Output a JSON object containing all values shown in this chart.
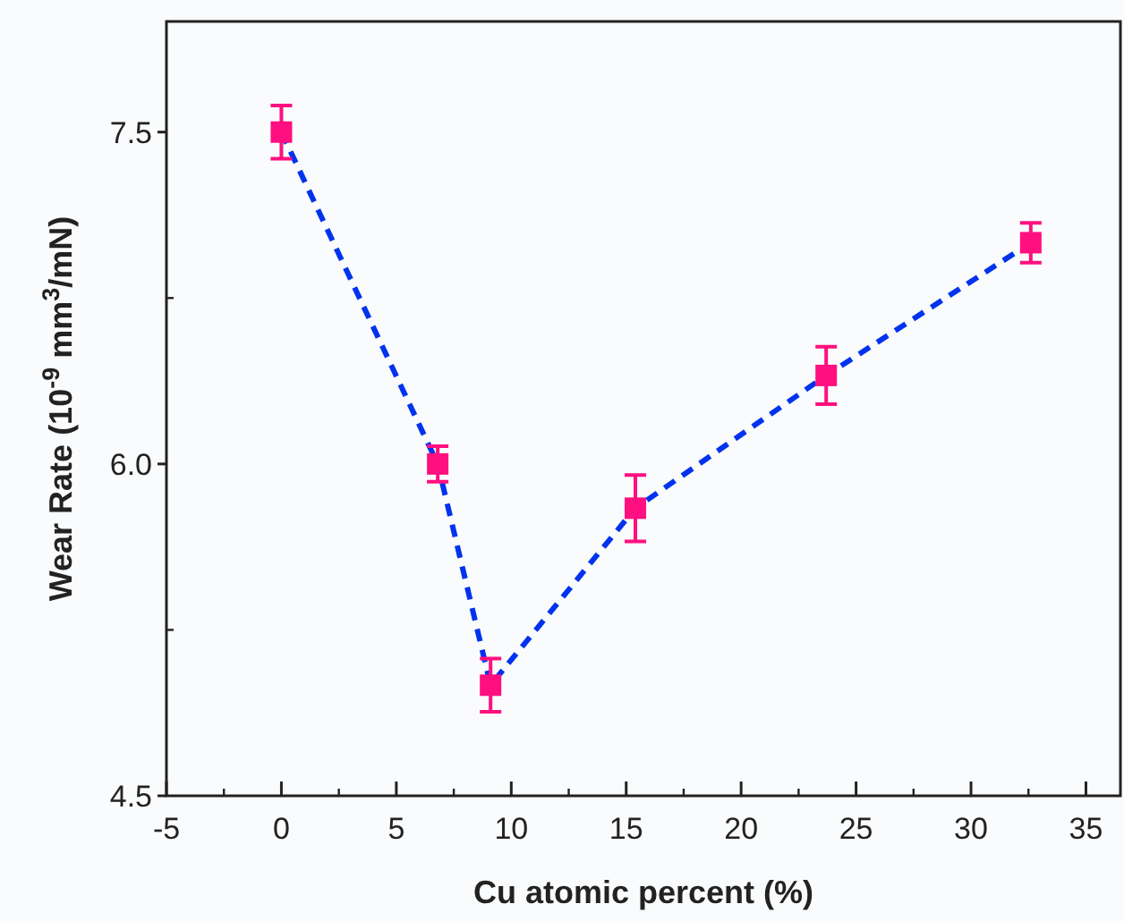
{
  "chart_data": {
    "type": "line",
    "xlabel": "Cu atomic percent (%)",
    "ylabel": "Wear Rate (10$^{-9}$ mm$^{3}$/mN)",
    "x": [
      0,
      6.8,
      9.1,
      15.4,
      23.7,
      32.6
    ],
    "series": [
      {
        "color": "#0033ee",
        "values": [
          7.5,
          6.0,
          5.0,
          5.8,
          6.4,
          7.0
        ],
        "marker": "none",
        "line_style": "dashed"
      },
      {
        "type": "scatter",
        "color": "#ff0f7f",
        "values": [
          7.5,
          6.0,
          5.0,
          5.8,
          6.4,
          7.0
        ],
        "errors": [
          0.12,
          0.08,
          0.12,
          0.15,
          0.13,
          0.09
        ],
        "marker": "square"
      }
    ],
    "xlim": [
      -5,
      36.5
    ],
    "xticks": [
      -5,
      0,
      5,
      10,
      15,
      20,
      25,
      30,
      35
    ],
    "ylim": [
      4.5,
      8
    ],
    "yticks": [
      {
        "value": 4.5,
        "label": "4.5"
      },
      {
        "value": 6,
        "label": "6.0"
      },
      {
        "value": 7.5,
        "label": "7.5"
      }
    ],
    "grid": false
  }
}
